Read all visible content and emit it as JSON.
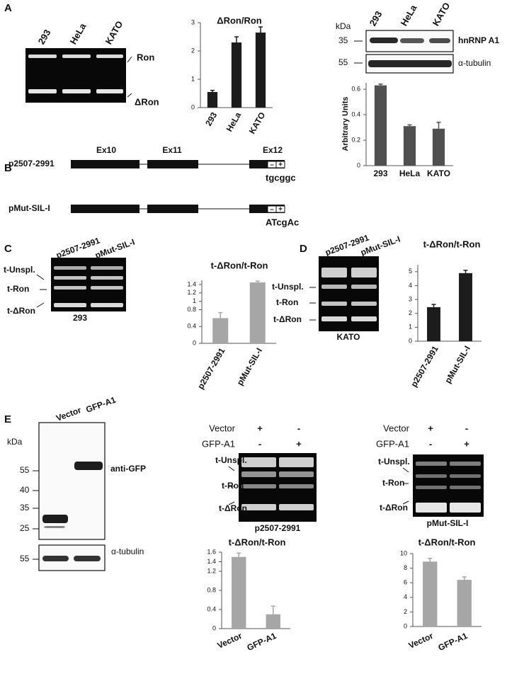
{
  "panel_labels": [
    "A",
    "B",
    "C",
    "D",
    "E"
  ],
  "panel_a": {
    "gel_lanes": [
      "293",
      "HeLa",
      "KATO"
    ],
    "gel_bands": [
      "Ron",
      "ΔRon"
    ],
    "blot_unit": "kDa",
    "blot_lanes": [
      "293",
      "HeLa",
      "KATO"
    ],
    "blot_markers": [
      "35",
      "55"
    ],
    "blot_rows": [
      "hnRNP A1",
      "α-tubulin"
    ]
  },
  "panel_b": {
    "exons": [
      "Ex10",
      "Ex11",
      "Ex12"
    ],
    "signs": [
      "–",
      "+"
    ],
    "constructs": [
      {
        "name": "p2507-2991",
        "sequence": "tgcggc"
      },
      {
        "name": "pMut-SIL-I",
        "sequence": "ATcgAc"
      }
    ]
  },
  "panel_c": {
    "gel_lanes": [
      "p2507-2991",
      "pMut-SIL-I"
    ],
    "bands": [
      "t-Unspl.",
      "t-Ron",
      "t-ΔRon"
    ],
    "cell_line": "293"
  },
  "panel_d": {
    "gel_lanes": [
      "p2507-2991",
      "pMut-SIL-I"
    ],
    "bands": [
      "t-Unspl.",
      "t-Ron",
      "t-ΔRon"
    ],
    "cell_line": "KATO"
  },
  "panel_e": {
    "blot_lanes": [
      "Vector",
      "GFP-A1"
    ],
    "blot_unit": "kDa",
    "blot_markers": [
      "55",
      "40",
      "35",
      "25"
    ],
    "tubulin_marker": "55",
    "blot_rows": [
      "anti-GFP",
      "α-tubulin"
    ],
    "gels": [
      {
        "rows": [
          {
            "label": "Vector",
            "signs": [
              "+",
              "-"
            ]
          },
          {
            "label": "GFP-A1",
            "signs": [
              "-",
              "+"
            ]
          }
        ],
        "bands": [
          "t-Unspl.",
          "t-Ron",
          "t-ΔRon"
        ],
        "construct": "p2507-2991"
      },
      {
        "rows": [
          {
            "label": "Vector",
            "signs": [
              "+",
              "-"
            ]
          },
          {
            "label": "GFP-A1",
            "signs": [
              "-",
              "+"
            ]
          }
        ],
        "bands": [
          "t-Unspl.",
          "t-Ron",
          "t-ΔRon"
        ],
        "construct": "pMut-SIL-I"
      }
    ]
  },
  "chart_data": [
    {
      "type": "bar",
      "title": "ΔRon/Ron",
      "categories": [
        "293",
        "HeLa",
        "KATO"
      ],
      "values": [
        0.55,
        2.3,
        2.65
      ],
      "errors": [
        0.06,
        0.2,
        0.2
      ],
      "color": "#1c1c1c",
      "ylim": [
        0,
        3
      ],
      "yticks": [
        0,
        1,
        2,
        3
      ]
    },
    {
      "type": "bar",
      "ylabel": "Arbitrary Units",
      "categories": [
        "293",
        "HeLa",
        "KATO"
      ],
      "values": [
        0.63,
        0.31,
        0.29
      ],
      "errors": [
        0.01,
        0.01,
        0.05
      ],
      "color": "#505050",
      "ylim": [
        0,
        0.65
      ],
      "yticks": [
        0,
        0.2,
        0.4,
        0.6
      ]
    },
    {
      "type": "bar",
      "title": "t-ΔRon/t-Ron",
      "categories": [
        "p2507-2991",
        "pMut-SIL-I"
      ],
      "values": [
        0.6,
        1.45
      ],
      "errors": [
        0.13,
        0.03
      ],
      "color": "#a6a6a6",
      "ylim": [
        0,
        1.5
      ],
      "yticks": [
        0,
        0.4,
        0.8,
        1,
        1.2,
        1.4
      ]
    },
    {
      "type": "bar",
      "title": "t-ΔRon/t-Ron",
      "categories": [
        "p2507-2991",
        "pMut-SIL-I"
      ],
      "values": [
        2.45,
        4.9
      ],
      "errors": [
        0.2,
        0.2
      ],
      "color": "#1c1c1c",
      "ylim": [
        0,
        5.5
      ],
      "yticks": [
        0,
        1,
        2,
        3,
        4,
        5
      ]
    },
    {
      "type": "bar",
      "title": "t-ΔRon/t-Ron",
      "categories": [
        "Vector",
        "GFP-A1"
      ],
      "values": [
        1.5,
        0.3
      ],
      "errors": [
        0.08,
        0.17
      ],
      "color": "#a6a6a6",
      "ylim": [
        0,
        1.6
      ],
      "yticks": [
        0,
        0.4,
        0.8,
        1.2,
        1.4,
        1.6
      ]
    },
    {
      "type": "bar",
      "title": "t-ΔRon/t-Ron",
      "categories": [
        "Vector",
        "GFP-A1"
      ],
      "values": [
        8.9,
        6.4
      ],
      "errors": [
        0.45,
        0.4
      ],
      "color": "#a6a6a6",
      "ylim": [
        0,
        10
      ],
      "yticks": [
        0,
        2,
        4,
        6,
        8,
        10
      ]
    }
  ]
}
